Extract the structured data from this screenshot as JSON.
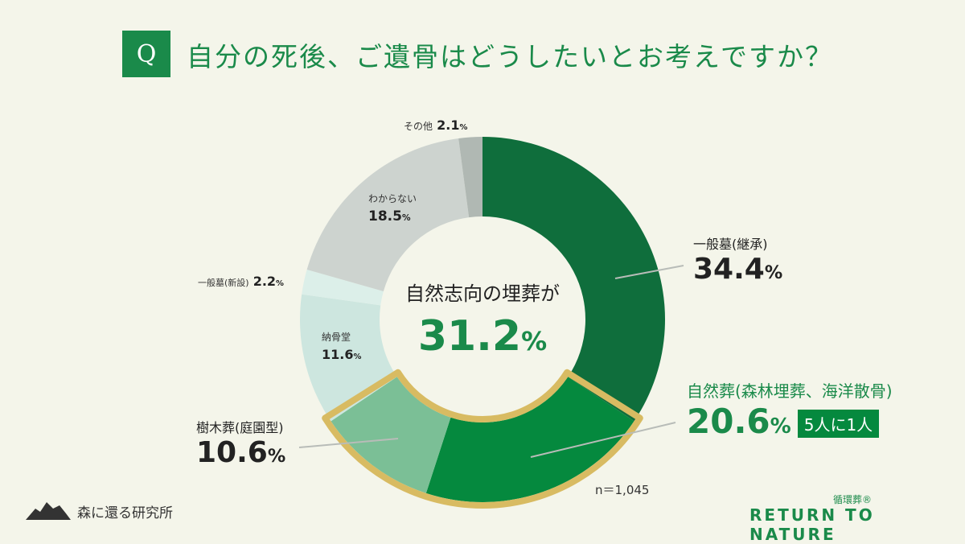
{
  "header": {
    "q_mark": "Q",
    "title": "自分の死後、ご遺骨はどうしたいとお考えですか？"
  },
  "chart_data": {
    "type": "pie",
    "donut": true,
    "categories": [
      "一般墓(継承)",
      "自然葬(森林埋葬、海洋散骨)",
      "樹木葬(庭園型)",
      "納骨堂",
      "一般墓(新設)",
      "わからない",
      "その他"
    ],
    "values": [
      34.4,
      20.6,
      10.6,
      11.6,
      2.2,
      18.5,
      2.1
    ],
    "colors": [
      "#0f6e3c",
      "#05893e",
      "#7bbf96",
      "#cde6df",
      "#dcefe9",
      "#cdd3cf",
      "#b0b8b3"
    ],
    "highlight": {
      "categories": [
        "自然葬(森林埋葬、海洋散骨)",
        "樹木葬(庭園型)"
      ],
      "color": "#d8bb62"
    },
    "center_label": "自然志向の埋葬が",
    "center_value": "31.2",
    "unit": "%",
    "badge": "5人に1人",
    "sample": "n＝1,045"
  },
  "footer": {
    "org": "森に還る研究所",
    "brand_sub": "循環葬®",
    "brand": "RETURN TO NATURE"
  }
}
